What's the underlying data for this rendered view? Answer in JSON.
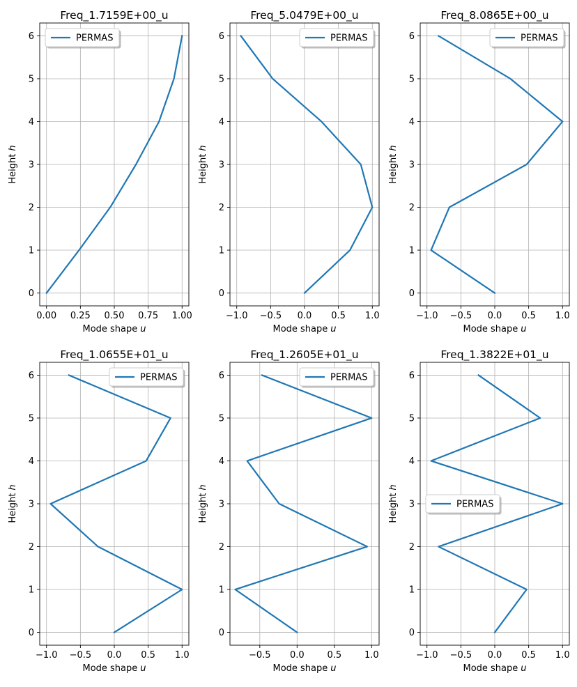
{
  "figure": {
    "background": "#ffffff",
    "line_color": "#1f77b4",
    "grid_color": "#b0b0b0"
  },
  "chart_data": [
    {
      "type": "line",
      "title": "Freq_1.7159E+00_u",
      "xlabel": "Mode shape",
      "xlabel_symbol": "u",
      "ylabel": "Height",
      "ylabel_symbol": "h",
      "xlim": [
        -0.05,
        1.05
      ],
      "ylim": [
        -0.3,
        6.3
      ],
      "xticks": [
        0,
        0.25,
        0.5,
        0.75,
        1
      ],
      "xtick_labels": [
        "0.00",
        "0.25",
        "0.50",
        "0.75",
        "1.00"
      ],
      "yticks": [
        0,
        1,
        2,
        3,
        4,
        5,
        6
      ],
      "ytick_labels": [
        "0",
        "1",
        "2",
        "3",
        "4",
        "5",
        "6"
      ],
      "grid": true,
      "legend_position": "upper left",
      "series": [
        {
          "name": "PERMAS",
          "x": [
            0.0,
            0.24,
            0.47,
            0.66,
            0.83,
            0.94,
            1.0
          ],
          "y": [
            0,
            1,
            2,
            3,
            4,
            5,
            6
          ]
        }
      ]
    },
    {
      "type": "line",
      "title": "Freq_5.0479E+00_u",
      "xlabel": "Mode shape",
      "xlabel_symbol": "u",
      "ylabel": "Height",
      "ylabel_symbol": "h",
      "xlim": [
        -1.1,
        1.1
      ],
      "ylim": [
        -0.3,
        6.3
      ],
      "xticks": [
        -1,
        -0.5,
        0,
        0.5,
        1
      ],
      "xtick_labels": [
        "−1.0",
        "−0.5",
        "0.0",
        "0.5",
        "1.0"
      ],
      "yticks": [
        0,
        1,
        2,
        3,
        4,
        5,
        6
      ],
      "ytick_labels": [
        "0",
        "1",
        "2",
        "3",
        "4",
        "5",
        "6"
      ],
      "grid": true,
      "legend_position": "upper right",
      "series": [
        {
          "name": "PERMAS",
          "x": [
            0.0,
            0.67,
            1.0,
            0.83,
            0.25,
            -0.47,
            -0.94
          ],
          "y": [
            0,
            1,
            2,
            3,
            4,
            5,
            6
          ]
        }
      ]
    },
    {
      "type": "line",
      "title": "Freq_8.0865E+00_u",
      "xlabel": "Mode shape",
      "xlabel_symbol": "u",
      "ylabel": "Height",
      "ylabel_symbol": "h",
      "xlim": [
        -1.1,
        1.1
      ],
      "ylim": [
        -0.3,
        6.3
      ],
      "xticks": [
        -1,
        -0.5,
        0,
        0.5,
        1
      ],
      "xtick_labels": [
        "−1.0",
        "−0.5",
        "0.0",
        "0.5",
        "1.0"
      ],
      "yticks": [
        0,
        1,
        2,
        3,
        4,
        5,
        6
      ],
      "ytick_labels": [
        "0",
        "1",
        "2",
        "3",
        "4",
        "5",
        "6"
      ],
      "grid": true,
      "legend_position": "upper right",
      "series": [
        {
          "name": "PERMAS",
          "x": [
            0.0,
            -0.94,
            -0.67,
            0.47,
            1.0,
            0.23,
            -0.83
          ],
          "y": [
            0,
            1,
            2,
            3,
            4,
            5,
            6
          ]
        }
      ]
    },
    {
      "type": "line",
      "title": "Freq_1.0655E+01_u",
      "xlabel": "Mode shape",
      "xlabel_symbol": "u",
      "ylabel": "Height",
      "ylabel_symbol": "h",
      "xlim": [
        -1.1,
        1.1
      ],
      "ylim": [
        -0.3,
        6.3
      ],
      "xticks": [
        -1,
        -0.5,
        0,
        0.5,
        1
      ],
      "xtick_labels": [
        "−1.0",
        "−0.5",
        "0.0",
        "0.5",
        "1.0"
      ],
      "yticks": [
        0,
        1,
        2,
        3,
        4,
        5,
        6
      ],
      "ytick_labels": [
        "0",
        "1",
        "2",
        "3",
        "4",
        "5",
        "6"
      ],
      "grid": true,
      "legend_position": "upper right",
      "series": [
        {
          "name": "PERMAS",
          "x": [
            0.0,
            1.0,
            -0.24,
            -0.94,
            0.47,
            0.83,
            -0.67
          ],
          "y": [
            0,
            1,
            2,
            3,
            4,
            5,
            6
          ]
        }
      ]
    },
    {
      "type": "line",
      "title": "Freq_1.2605E+01_u",
      "xlabel": "Mode shape",
      "xlabel_symbol": "u",
      "ylabel": "Height",
      "ylabel_symbol": "h",
      "xlim": [
        -0.9,
        1.1
      ],
      "ylim": [
        -0.3,
        6.3
      ],
      "xticks": [
        -0.5,
        0,
        0.5,
        1
      ],
      "xtick_labels": [
        "−0.5",
        "0.0",
        "0.5",
        "1.0"
      ],
      "yticks": [
        0,
        1,
        2,
        3,
        4,
        5,
        6
      ],
      "ytick_labels": [
        "0",
        "1",
        "2",
        "3",
        "4",
        "5",
        "6"
      ],
      "grid": true,
      "legend_position": "upper right",
      "series": [
        {
          "name": "PERMAS",
          "x": [
            0.0,
            -0.83,
            0.94,
            -0.24,
            -0.67,
            1.0,
            -0.47
          ],
          "y": [
            0,
            1,
            2,
            3,
            4,
            5,
            6
          ]
        }
      ]
    },
    {
      "type": "line",
      "title": "Freq_1.3822E+01_u",
      "xlabel": "Mode shape",
      "xlabel_symbol": "u",
      "ylabel": "Height",
      "ylabel_symbol": "h",
      "xlim": [
        -1.1,
        1.1
      ],
      "ylim": [
        -0.3,
        6.3
      ],
      "xticks": [
        -1,
        -0.5,
        0,
        0.5,
        1
      ],
      "xtick_labels": [
        "−1.0",
        "−0.5",
        "0.0",
        "0.5",
        "1.0"
      ],
      "yticks": [
        0,
        1,
        2,
        3,
        4,
        5,
        6
      ],
      "ytick_labels": [
        "0",
        "1",
        "2",
        "3",
        "4",
        "5",
        "6"
      ],
      "grid": true,
      "legend_position": "center left",
      "series": [
        {
          "name": "PERMAS",
          "x": [
            0.0,
            0.47,
            -0.83,
            1.0,
            -0.94,
            0.67,
            -0.24
          ],
          "y": [
            0,
            1,
            2,
            3,
            4,
            5,
            6
          ]
        }
      ]
    }
  ]
}
